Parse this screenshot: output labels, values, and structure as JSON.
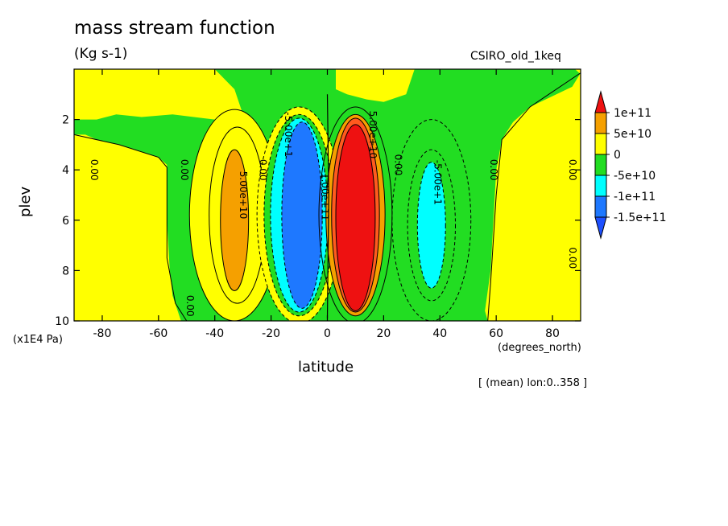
{
  "chart_data": {
    "type": "heatmap",
    "title": "mass stream function",
    "units": "(Kg s-1)",
    "dataset": "CSIRO_old_1keq",
    "xlabel": "latitude",
    "ylabel": "plev",
    "x_unit_note": "(degrees_north)",
    "y_unit_note": "(x1E4 Pa)",
    "footer_note": "[ (mean) lon:0..358 ]",
    "xlim": [
      -90,
      90
    ],
    "ylim": [
      0,
      10
    ],
    "y_inverted": true,
    "x_ticks": [
      -80,
      -60,
      -40,
      -20,
      0,
      20,
      40,
      60,
      80
    ],
    "y_ticks": [
      2,
      4,
      6,
      8,
      10
    ],
    "colorbar": {
      "labels": [
        "1e+11",
        "5e+10",
        "0",
        "-5e+10",
        "-1e+11",
        "-1.5e+11"
      ],
      "colors": {
        "above_1e11": "#ee1111",
        "5e10_to_1e11": "#f5a000",
        "0_to_5e10": "#ffff00",
        "-5e10_to_0": "#22dd22",
        "-1e11_to_-5e10": "#00ffff",
        "-1.5e11_to_-1e11": "#1e78ff",
        "below_-1.5e11": "#1e50ff"
      }
    },
    "features": [
      {
        "name": "southern positive cell",
        "sign": "positive",
        "lat_range": [
          -38,
          -28
        ],
        "plev_range": [
          3.0,
          8.8
        ],
        "peak_band": "5e10_to_1e11"
      },
      {
        "name": "southern Hadley cell",
        "sign": "negative",
        "lat_range": [
          -18,
          -2
        ],
        "plev_range": [
          2.0,
          9.6
        ],
        "peak_band": "-1.5e11_to_-1e11"
      },
      {
        "name": "northern Hadley cell",
        "sign": "positive",
        "lat_range": [
          2,
          18
        ],
        "plev_range": [
          2.0,
          9.6
        ],
        "peak_band": "above_1e11"
      },
      {
        "name": "northern negative cell",
        "sign": "negative",
        "lat_range": [
          30,
          44
        ],
        "plev_range": [
          3.7,
          9.0
        ],
        "peak_band": "-1e11_to_-5e10"
      }
    ],
    "contour_labels": [
      {
        "text": "0.00",
        "lat": -84,
        "plev": 4.0
      },
      {
        "text": "0.00",
        "lat": -52,
        "plev": 4.0
      },
      {
        "text": "5.00e+10",
        "lat": -31,
        "plev": 5.0
      },
      {
        "text": "0.00",
        "lat": -24,
        "plev": 4.0
      },
      {
        "text": "-5.00e+1",
        "lat": -15,
        "plev": 2.6
      },
      {
        "text": "-1.00e+11",
        "lat": -2,
        "plev": 5.0
      },
      {
        "text": "5.00e+10",
        "lat": 15,
        "plev": 2.6
      },
      {
        "text": "0.00",
        "lat": 24,
        "plev": 3.8
      },
      {
        "text": "-5.00e+1",
        "lat": 38,
        "plev": 4.5
      },
      {
        "text": "0.00",
        "lat": 58,
        "plev": 4.0
      },
      {
        "text": "0.00",
        "lat": 86,
        "plev": 4.0
      },
      {
        "text": "0.00",
        "lat": 86,
        "plev": 7.5
      },
      {
        "text": "0.00",
        "lat": -50,
        "plev": 9.4
      }
    ]
  }
}
